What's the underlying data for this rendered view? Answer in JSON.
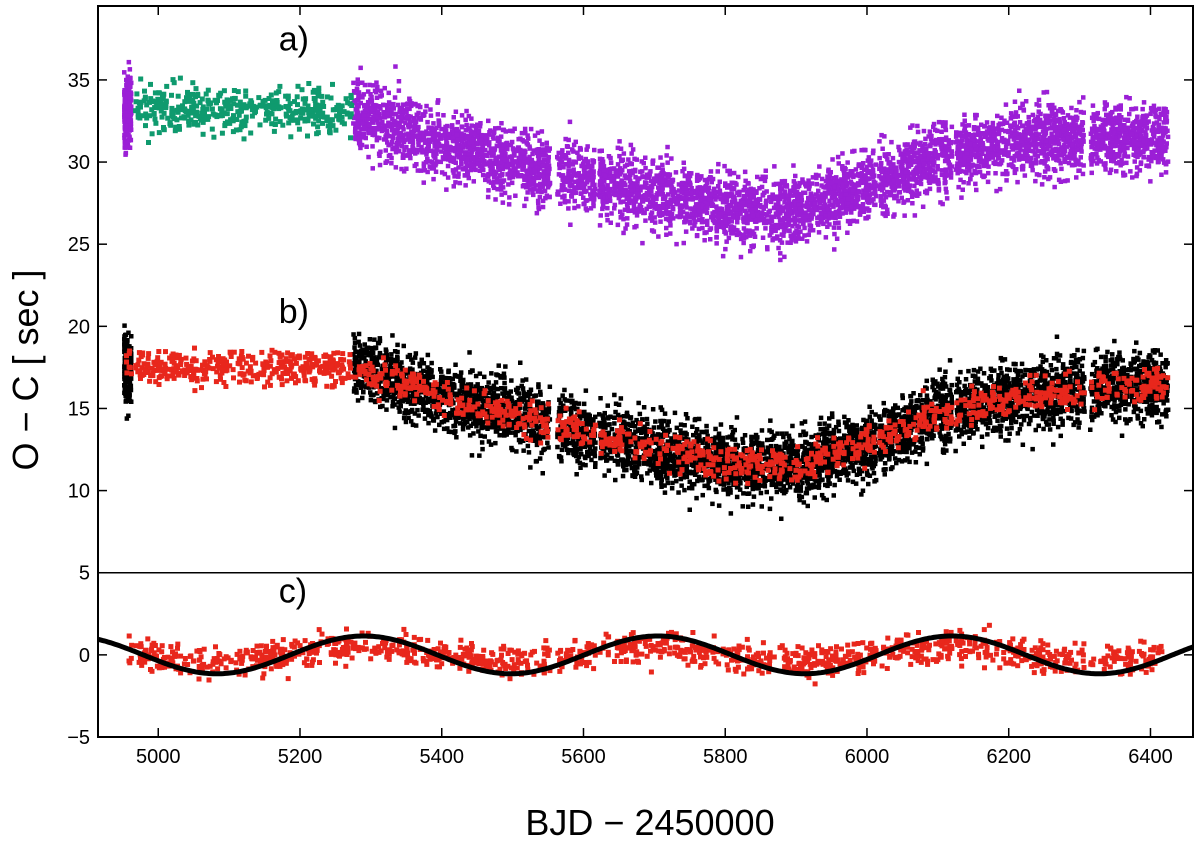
{
  "chart_data": {
    "type": "scatter",
    "xlabel": "BJD − 2450000",
    "ylabel": "O − C   [ sec ]",
    "xlim": [
      4915,
      6460
    ],
    "ylim": [
      -5,
      39.5
    ],
    "x_ticks": [
      5000,
      5200,
      5400,
      5600,
      5800,
      6000,
      6200,
      6400
    ],
    "y_ticks": [
      -5,
      0,
      5,
      10,
      15,
      20,
      25,
      30,
      35
    ],
    "y_tick_labels": [
      "−5",
      "0",
      "5",
      "10",
      "15",
      "20",
      "25",
      "30",
      "35"
    ],
    "panel_divider_y": 5,
    "grid": false,
    "panels": [
      {
        "label": "a)",
        "label_x": 5170,
        "label_y": 36.8
      },
      {
        "label": "b)",
        "label_x": 5170,
        "label_y": 20.2
      },
      {
        "label": "c)",
        "label_x": 5170,
        "label_y": 3.2
      }
    ],
    "gaps": [
      [
        4963,
        4968
      ],
      [
        5553,
        5563
      ],
      [
        5617,
        5622
      ],
      [
        5640,
        5643
      ],
      [
        6013,
        6017
      ],
      [
        6120,
        6125
      ],
      [
        6307,
        6315
      ]
    ],
    "series": [
      {
        "panel": "a",
        "colors": {
          "purple": "#9b1fd6",
          "green": "#0f9a6e"
        },
        "trend_points": [
          [
            4955,
            33
          ],
          [
            5275,
            33
          ],
          [
            5400,
            31
          ],
          [
            5550,
            29.5
          ],
          [
            5700,
            28
          ],
          [
            5800,
            27.2
          ],
          [
            5900,
            27
          ],
          [
            6000,
            28.5
          ],
          [
            6100,
            30.2
          ],
          [
            6200,
            31.2
          ],
          [
            6300,
            31.5
          ],
          [
            6420,
            31.5
          ]
        ],
        "early_level": 33.2,
        "spread": 1.6
      },
      {
        "panel": "b",
        "colors": {
          "black": "#000000",
          "red": "#e8271c"
        },
        "trend_points": [
          [
            4955,
            17.5
          ],
          [
            5275,
            17.5
          ],
          [
            5400,
            15.8
          ],
          [
            5550,
            14
          ],
          [
            5700,
            12.5
          ],
          [
            5800,
            11.7
          ],
          [
            5900,
            11.5
          ],
          [
            6000,
            12.8
          ],
          [
            6100,
            14.6
          ],
          [
            6200,
            15.6
          ],
          [
            6300,
            16.1
          ],
          [
            6420,
            16.5
          ]
        ],
        "spread_black": 1.6,
        "spread_red": 0.8
      },
      {
        "panel": "c",
        "color": "#e8271c",
        "spread": 0.75
      }
    ],
    "model_curve": {
      "color": "#000000",
      "amplitude": 1.15,
      "period": 415,
      "peak_x": 5290
    }
  }
}
